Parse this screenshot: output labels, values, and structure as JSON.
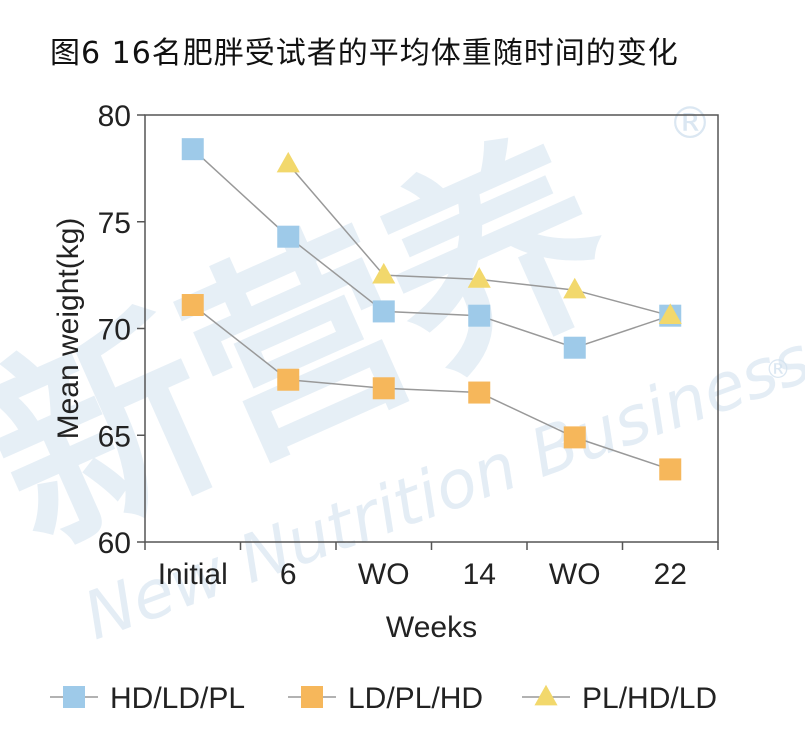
{
  "title": "图6 16名肥胖受试者的平均体重随时间的变化",
  "watermark": {
    "cn": "新营养",
    "en": "New Nutrition Business",
    "reg": "®"
  },
  "colors": {
    "HD/LD/PL": "#9ecae9",
    "LD/PL/HD": "#f6b75b",
    "PL/HD/LD": "#f2d86c",
    "line": "#999999",
    "axis": "#555555"
  },
  "chart_data": {
    "type": "line",
    "title": "",
    "xlabel": "Weeks",
    "ylabel": "Mean weight(kg)",
    "categories": [
      "Initial",
      "6",
      "WO",
      "14",
      "WO",
      "22"
    ],
    "ylim": [
      60,
      80
    ],
    "yticks": [
      "80",
      "75",
      "70",
      "65",
      "60"
    ],
    "grid": false,
    "legend_position": "bottom",
    "series": [
      {
        "name": "HD/LD/PL",
        "marker": "square",
        "values": [
          78.4,
          74.3,
          70.8,
          70.6,
          69.1,
          70.6
        ]
      },
      {
        "name": "LD/PL/HD",
        "marker": "square",
        "values": [
          71.1,
          67.6,
          67.2,
          67.0,
          64.9,
          63.4
        ]
      },
      {
        "name": "PL/HD/LD",
        "marker": "triangle",
        "values": [
          null,
          77.7,
          72.5,
          72.3,
          71.8,
          70.6
        ]
      }
    ]
  }
}
